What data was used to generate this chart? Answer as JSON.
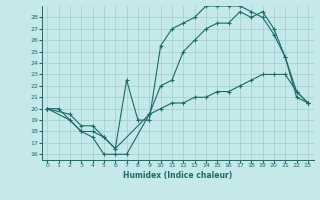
{
  "xlabel": "Humidex (Indice chaleur)",
  "bg_color": "#c5e8e8",
  "grid_color": "#9fcfcf",
  "line_color": "#1a6b6b",
  "xlim": [
    -0.5,
    23.5
  ],
  "ylim": [
    15.5,
    29.0
  ],
  "xticks": [
    0,
    1,
    2,
    3,
    4,
    5,
    6,
    7,
    8,
    9,
    10,
    11,
    12,
    13,
    14,
    15,
    16,
    17,
    18,
    19,
    20,
    21,
    22,
    23
  ],
  "yticks": [
    16,
    17,
    18,
    19,
    20,
    21,
    22,
    23,
    24,
    25,
    26,
    27,
    28
  ],
  "line1_x": [
    0,
    1,
    3,
    4,
    5,
    6,
    7,
    9,
    10,
    11,
    12,
    13,
    14,
    15,
    16,
    17,
    18,
    19,
    20,
    21,
    22,
    23
  ],
  "line1_y": [
    20,
    20,
    18,
    17.5,
    16,
    16,
    16,
    19.5,
    22,
    22.5,
    25,
    26,
    27,
    27.5,
    27.5,
    28.5,
    28,
    28.5,
    27,
    24.5,
    21.5,
    20.5
  ],
  "line2_x": [
    0,
    2,
    3,
    4,
    5,
    6,
    7,
    8,
    9,
    10,
    11,
    12,
    13,
    14,
    15,
    16,
    17,
    18,
    19,
    20,
    21,
    22,
    23
  ],
  "line2_y": [
    20,
    19,
    18,
    18,
    17.5,
    16.5,
    22.5,
    19,
    19,
    25.5,
    27,
    27.5,
    28,
    29,
    29,
    29,
    29,
    28.5,
    28,
    26.5,
    24.5,
    21,
    20.5
  ],
  "line3_x": [
    0,
    2,
    3,
    4,
    5,
    6,
    9,
    10,
    11,
    12,
    13,
    14,
    15,
    16,
    17,
    18,
    19,
    20,
    21,
    22,
    23
  ],
  "line3_y": [
    20,
    19.5,
    18.5,
    18.5,
    17.5,
    16.5,
    19.5,
    20,
    20.5,
    20.5,
    21,
    21,
    21.5,
    21.5,
    22,
    22.5,
    23,
    23,
    23,
    21.5,
    20.5
  ]
}
